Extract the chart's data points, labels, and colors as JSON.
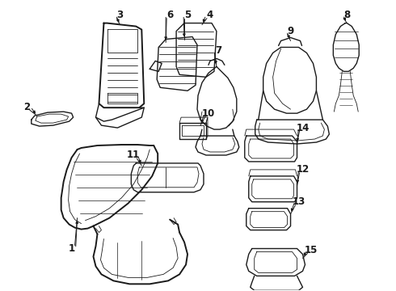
{
  "background_color": "#ffffff",
  "line_color": "#1a1a1a",
  "fig_width": 4.9,
  "fig_height": 3.6,
  "dpi": 100,
  "label_fontsize": 8.5,
  "lw": 1.0,
  "lw_thin": 0.6,
  "lw_thick": 1.4
}
